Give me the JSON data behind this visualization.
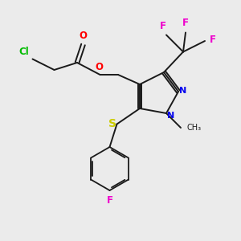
{
  "bg_color": "#ebebeb",
  "bond_color": "#1a1a1a",
  "colors": {
    "O": "#ff0000",
    "N": "#0000ee",
    "S": "#cccc00",
    "Cl": "#00bb00",
    "F": "#ee00cc",
    "C": "#1a1a1a"
  },
  "figsize": [
    3.0,
    3.0
  ],
  "dpi": 100
}
